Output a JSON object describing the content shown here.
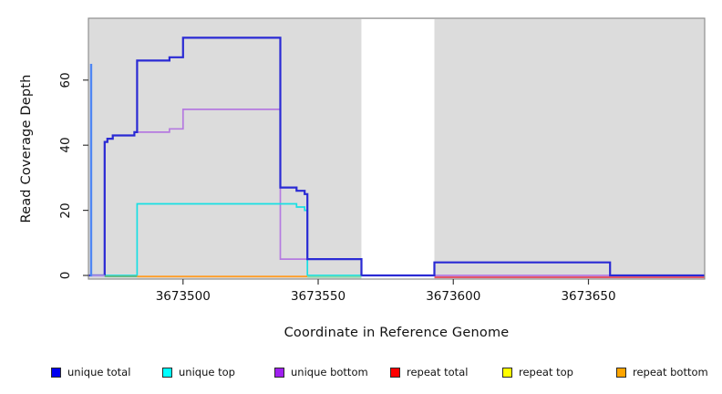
{
  "figure": {
    "y_axis_title": "Read Coverage Depth",
    "x_axis_title": "Coordinate in Reference Genome"
  },
  "chart_data": {
    "type": "line",
    "subtype": "step-coverage-plot",
    "title": "",
    "xlabel": "Coordinate in Reference Genome",
    "ylabel": "Read Coverage Depth",
    "xlim": [
      3673465,
      3673693
    ],
    "ylim": [
      0,
      79
    ],
    "x_tick_values": [
      3673500,
      3673550,
      3673600,
      3673650
    ],
    "x_tick_labels": [
      "3673500",
      "3673550",
      "3673600",
      "3673650"
    ],
    "y_tick_values": [
      0,
      20,
      40,
      60
    ],
    "y_tick_labels": [
      "0",
      "20",
      "40",
      "60"
    ],
    "grid": false,
    "legend_position": "bottom",
    "plot_bg_color": "#dcdcdc",
    "plot_border_color": "#8f8f8f",
    "masked_region": {
      "from": 3673566,
      "to": 3673593,
      "color": "#ffffff"
    },
    "edge_spike": {
      "x": 3673466,
      "value": 65,
      "color": "#4f86f2",
      "note": "narrow spike at left plot edge"
    },
    "series": [
      {
        "name": "unique total",
        "color": "#2a2ad4",
        "width": 2.2,
        "draw": true,
        "points": [
          [
            3673465,
            0
          ],
          [
            3673471,
            41
          ],
          [
            3673472,
            42
          ],
          [
            3673474,
            43
          ],
          [
            3673482,
            44
          ],
          [
            3673483,
            66
          ],
          [
            3673495,
            67
          ],
          [
            3673500,
            73
          ],
          [
            3673536,
            27
          ],
          [
            3673542,
            26
          ],
          [
            3673545,
            25
          ],
          [
            3673546,
            5
          ],
          [
            3673566,
            0
          ],
          [
            3673593,
            4
          ],
          [
            3673658,
            0
          ],
          [
            3673693,
            0
          ]
        ]
      },
      {
        "name": "unique top",
        "color": "#18dfe3",
        "width": 1.7,
        "draw": true,
        "points": [
          [
            3673465,
            0
          ],
          [
            3673483,
            22
          ],
          [
            3673542,
            21
          ],
          [
            3673545,
            20
          ],
          [
            3673546,
            0
          ],
          [
            3673566,
            0
          ]
        ]
      },
      {
        "name": "unique bottom",
        "color": "#b57ae0",
        "width": 1.7,
        "draw": true,
        "points": [
          [
            3673466,
            0
          ],
          [
            3673471,
            41
          ],
          [
            3673472,
            42
          ],
          [
            3673474,
            43
          ],
          [
            3673482,
            44
          ],
          [
            3673495,
            45
          ],
          [
            3673500,
            51
          ],
          [
            3673536,
            5
          ],
          [
            3673566,
            0
          ],
          [
            3673693,
            0
          ]
        ]
      },
      {
        "name": "repeat total",
        "color": "#ff0000",
        "width": 1.6,
        "draw": false,
        "points": [
          [
            3673465,
            0
          ],
          [
            3673693,
            0
          ]
        ]
      },
      {
        "name": "repeat top",
        "color": "#ffff00",
        "width": 1.6,
        "draw": false,
        "points": [
          [
            3673465,
            0
          ],
          [
            3673693,
            0
          ]
        ]
      },
      {
        "name": "repeat bottom",
        "color": "#ffa500",
        "width": 1.6,
        "draw": false,
        "points": [
          [
            3673465,
            0
          ],
          [
            3673693,
            0
          ]
        ]
      }
    ],
    "baseline_segments": [
      {
        "from": 3673466,
        "to": 3673471,
        "color": "#b9a0e8",
        "dy": 0.3
      },
      {
        "from": 3673471,
        "to": 3673483,
        "color": "#66bb88",
        "dy": 1.0
      },
      {
        "from": 3673483,
        "to": 3673546,
        "color": "#ff9d26",
        "dy": 1.2
      },
      {
        "from": 3673546,
        "to": 3673566,
        "color": "#86d8a8",
        "dy": 1.5
      },
      {
        "from": 3673593,
        "to": 3673693,
        "color": "#e25768",
        "dy": 2.0
      }
    ]
  },
  "legend": {
    "items": [
      {
        "label": "unique total",
        "color": "#0000f0"
      },
      {
        "label": "unique top",
        "color": "#00ffff"
      },
      {
        "label": "unique bottom",
        "color": "#a020f0"
      },
      {
        "label": "repeat total",
        "color": "#ff0000"
      },
      {
        "label": "repeat top",
        "color": "#ffff00"
      },
      {
        "label": "repeat bottom",
        "color": "#ffa500"
      }
    ]
  }
}
